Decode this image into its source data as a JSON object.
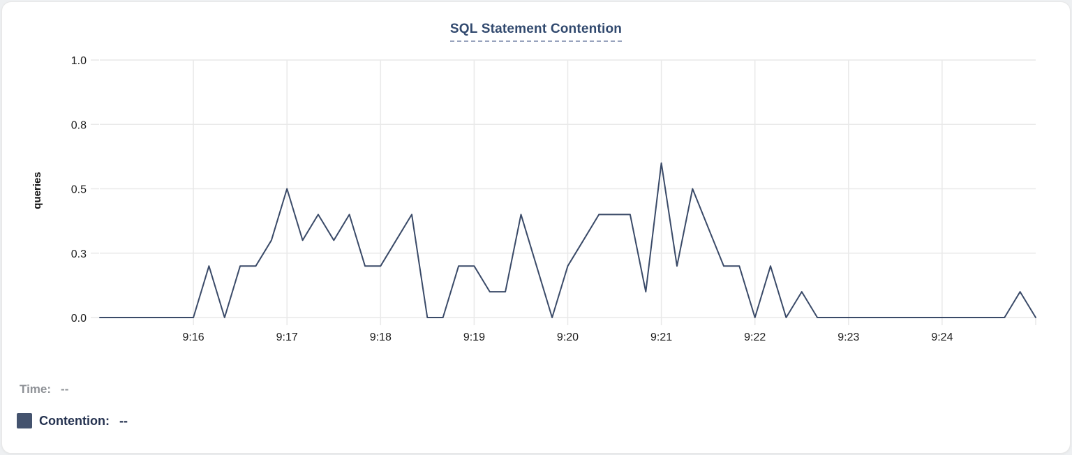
{
  "title": {
    "text": "SQL Statement Contention"
  },
  "readout": {
    "time_label": "Time:",
    "time_value": "--",
    "series_label": "Contention:",
    "series_value": "--"
  },
  "colors": {
    "line": "#3a4a68",
    "title": "#31496e",
    "title_underline": "#98a3bd",
    "grid": "#e9e9e9",
    "axis_text": "#1c1c1c",
    "swatch": "#44536e",
    "time_row_text": "#8e9196",
    "contention_row_text": "#24314f",
    "card_bg": "#ffffff"
  },
  "chart_data": {
    "type": "line",
    "title": "SQL Statement Contention",
    "xlabel": "",
    "ylabel": "queries",
    "ylim": [
      0,
      1.0
    ],
    "grid": true,
    "legend_position": "none",
    "y_ticks": [
      0,
      0.25,
      0.5,
      0.75,
      1.0
    ],
    "y_tick_labels": [
      "0.0",
      "0.3",
      "0.5",
      "0.8",
      "1.0"
    ],
    "x_tick_labels": [
      "9:16",
      "9:17",
      "9:18",
      "9:19",
      "9:20",
      "9:21",
      "9:22",
      "9:23",
      "9:24"
    ],
    "x_start": "9:15:00",
    "x_end": "9:25:00",
    "interval_seconds": 10,
    "series": [
      {
        "name": "Contention",
        "values": [
          0,
          0,
          0,
          0,
          0,
          0,
          0,
          0.2,
          0,
          0.2,
          0.2,
          0.3,
          0.5,
          0.3,
          0.4,
          0.3,
          0.4,
          0.2,
          0.2,
          0.3,
          0.4,
          0,
          0,
          0.2,
          0.2,
          0.1,
          0.1,
          0.4,
          0.2,
          0,
          0.2,
          0.3,
          0.4,
          0.4,
          0.4,
          0.1,
          0.6,
          0.2,
          0.5,
          0.35,
          0.2,
          0.2,
          0,
          0.2,
          0,
          0.1,
          0,
          0,
          0,
          0,
          0,
          0,
          0,
          0,
          0,
          0,
          0,
          0,
          0,
          0.1,
          0
        ]
      }
    ]
  }
}
